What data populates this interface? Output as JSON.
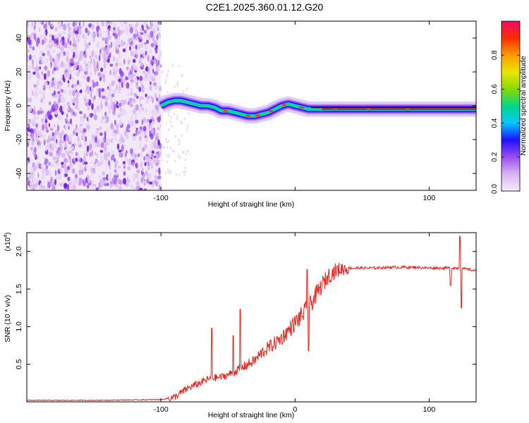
{
  "title": "C2E1.2025.360.01.12.G20",
  "chart_data": [
    {
      "type": "heatmap",
      "title": "C2E1.2025.360.01.12.G20",
      "xlabel": "Height of straight line (km)",
      "ylabel": "Frequency (Hz)",
      "xlim": [
        -200,
        135
      ],
      "ylim": [
        -50,
        50
      ],
      "x_ticks": [
        -100,
        0,
        100
      ],
      "x_tick_labels": [
        "-100",
        "",
        "100"
      ],
      "y_ticks": [
        -40,
        -20,
        0,
        20,
        40
      ],
      "y_tick_labels": [
        "-40",
        "-20",
        "0",
        "20",
        "40"
      ],
      "grid": false,
      "noise_region": {
        "x_start": -200,
        "x_end": -100
      },
      "trace": {
        "x": [
          -100,
          -95,
          -90,
          -85,
          -80,
          -75,
          -70,
          -65,
          -60,
          -55,
          -50,
          -45,
          -40,
          -35,
          -30,
          -25,
          -20,
          -15,
          -10,
          -5,
          0,
          5,
          10,
          20,
          30,
          40,
          50,
          60,
          70,
          80,
          90,
          100,
          110,
          120,
          135
        ],
        "y": [
          0,
          2,
          3,
          3,
          2,
          1,
          0,
          0,
          -1,
          -3,
          -3,
          -4,
          -5,
          -6,
          -6,
          -5,
          -4,
          -2,
          0,
          1,
          0,
          -1,
          -2,
          -2,
          -2,
          -2,
          -2,
          -2,
          -2,
          -2,
          -2,
          -2,
          -2,
          -2,
          -2
        ]
      },
      "colorbar": {
        "label": "Normalized spectral amplitude",
        "range": [
          0,
          1
        ],
        "ticks": [
          0.0,
          0.2,
          0.4,
          0.6,
          0.8
        ],
        "tick_labels": [
          "0.0",
          "0.2",
          "0.4",
          "0.6",
          "0.8"
        ],
        "colors": [
          "#f4eef8",
          "#d9b3f4",
          "#9a4ef0",
          "#1f10ff",
          "#00c8ff",
          "#00d888",
          "#8ad800",
          "#e8e800",
          "#ff9a00",
          "#ff2b00",
          "#ee0a6a"
        ]
      }
    },
    {
      "type": "line",
      "xlabel": "Height of straight line (km)",
      "ylabel": "SNR (10 * v/v)",
      "scale_label": "(x10",
      "scale_exponent": "4",
      "xlim": [
        -200,
        135
      ],
      "ylim": [
        0,
        2.25
      ],
      "x_ticks": [
        -100,
        0,
        100
      ],
      "x_tick_labels": [
        "-100",
        "0",
        "100"
      ],
      "y_ticks": [
        0.5,
        1.0,
        1.5,
        2.0
      ],
      "y_tick_labels": [
        "0.5",
        "1.0",
        "1.5",
        "2.0"
      ],
      "grid": false,
      "series": [
        {
          "name": "SNR",
          "color": "#e8231c",
          "x": [
            -200,
            -150,
            -100,
            -90,
            -85,
            -80,
            -75,
            -70,
            -65,
            -60,
            -55,
            -50,
            -45,
            -40,
            -35,
            -30,
            -25,
            -20,
            -15,
            -10,
            -5,
            0,
            5,
            10,
            15,
            20,
            25,
            30,
            35,
            40,
            50,
            60,
            70,
            80,
            90,
            100,
            110,
            120,
            125,
            130,
            135
          ],
          "y": [
            0.02,
            0.02,
            0.03,
            0.06,
            0.12,
            0.18,
            0.22,
            0.26,
            0.3,
            0.32,
            0.33,
            0.36,
            0.4,
            0.45,
            0.5,
            0.55,
            0.65,
            0.72,
            0.78,
            0.85,
            0.95,
            1.05,
            1.15,
            1.25,
            1.4,
            1.55,
            1.68,
            1.74,
            1.77,
            1.78,
            1.78,
            1.78,
            1.79,
            1.79,
            1.79,
            1.78,
            1.78,
            1.78,
            1.77,
            1.76,
            1.74
          ]
        }
      ],
      "spikes": [
        {
          "x": -62,
          "y": 0.98
        },
        {
          "x": -46,
          "y": 0.88
        },
        {
          "x": -41,
          "y": 1.23
        },
        {
          "x": 9,
          "y": 1.76
        },
        {
          "x": 10,
          "y": 0.68
        },
        {
          "x": 116,
          "y": 1.55
        },
        {
          "x": 123,
          "y": 2.2
        },
        {
          "x": 124,
          "y": 1.25
        }
      ]
    }
  ]
}
